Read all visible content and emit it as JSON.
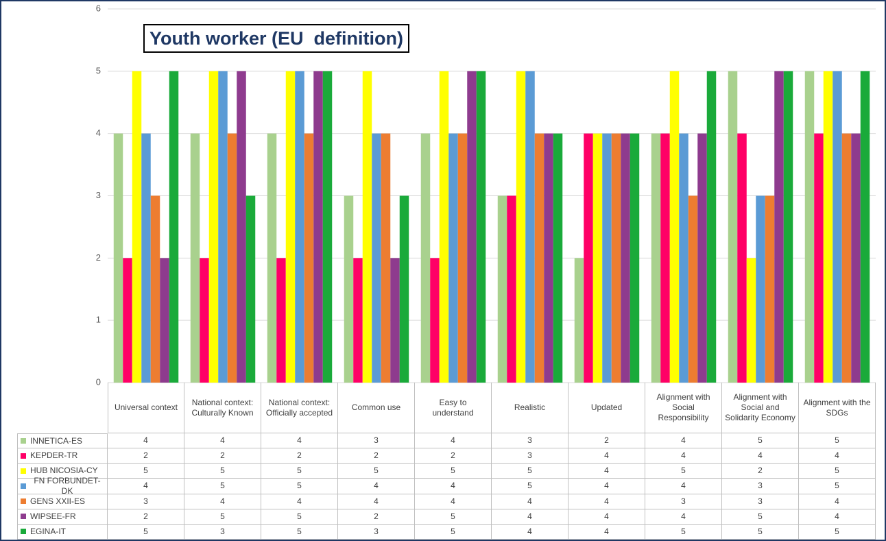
{
  "chart_data": {
    "type": "bar",
    "title": "Youth worker (EU  definition)",
    "categories": [
      "Universal context",
      "National context: Culturally Known",
      "National context: Officially accepted",
      "Common use",
      "Easy to understand",
      "Realistic",
      "Updated",
      "Alignment with Social Responsibility",
      "Alignment with Social and Solidarity Economy",
      "Alignment with the SDGs"
    ],
    "series": [
      {
        "name": "INNETICA-ES",
        "color": "#a9d18e",
        "values": [
          4,
          4,
          4,
          3,
          4,
          3,
          2,
          4,
          5,
          5
        ]
      },
      {
        "name": "KEPDER-TR",
        "color": "#ff0066",
        "values": [
          2,
          2,
          2,
          2,
          2,
          3,
          4,
          4,
          4,
          4
        ]
      },
      {
        "name": "HUB NICOSIA-CY",
        "color": "#ffff00",
        "values": [
          5,
          5,
          5,
          5,
          5,
          5,
          4,
          5,
          2,
          5
        ]
      },
      {
        "name": "FN FORBUNDET-DK",
        "color": "#5b9bd5",
        "values": [
          4,
          5,
          5,
          4,
          4,
          5,
          4,
          4,
          3,
          5
        ]
      },
      {
        "name": "GENS XXII-ES",
        "color": "#ed7d31",
        "values": [
          3,
          4,
          4,
          4,
          4,
          4,
          4,
          3,
          3,
          4
        ]
      },
      {
        "name": "WIPSEE-FR",
        "color": "#8e3b8e",
        "values": [
          2,
          5,
          5,
          2,
          5,
          4,
          4,
          4,
          5,
          4
        ]
      },
      {
        "name": "EGINA-IT",
        "color": "#1aaa3a",
        "values": [
          5,
          3,
          5,
          3,
          5,
          4,
          4,
          5,
          5,
          5
        ]
      }
    ],
    "ylim": [
      0,
      6
    ],
    "yticks": [
      0,
      1,
      2,
      3,
      4,
      5,
      6
    ],
    "grid": true
  }
}
